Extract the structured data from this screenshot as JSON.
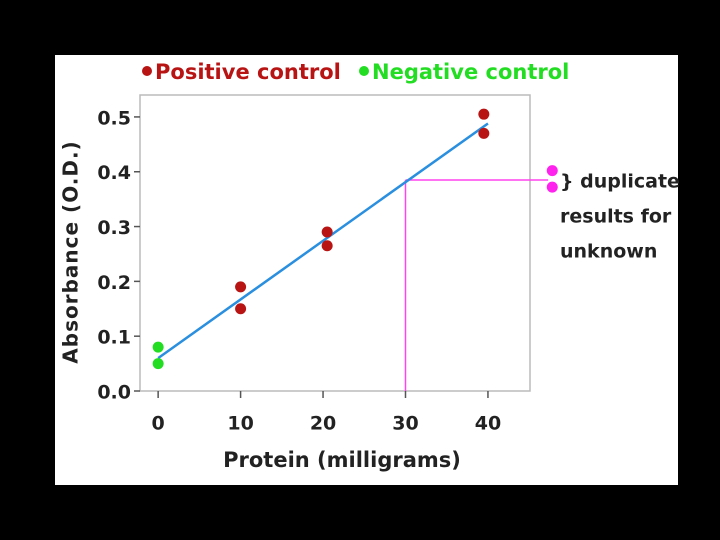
{
  "chart_data": {
    "type": "scatter",
    "x_label": "Protein (milligrams)",
    "y_label": "Absorbance (O.D.)",
    "xlim": [
      -2.2,
      45.1
    ],
    "ylim": [
      0,
      0.54
    ],
    "xticks": [
      0,
      10,
      20,
      30,
      40
    ],
    "yticks": [
      {
        "value": 0,
        "label": "0.0"
      },
      0.1,
      0.2,
      0.3,
      0.4,
      0.5
    ],
    "series": [
      {
        "name": "Positive control",
        "color": "#b81414",
        "x": [
          10,
          10,
          20.5,
          20.5,
          39.5,
          39.5
        ],
        "values": [
          0.19,
          0.15,
          0.29,
          0.265,
          0.505,
          0.47
        ]
      },
      {
        "name": "Negative control",
        "color": "#22dd22",
        "x": [
          0,
          0
        ],
        "values": [
          0.08,
          0.05
        ]
      },
      {
        "color": "#ff22ee",
        "x": [
          47.8,
          47.8
        ],
        "values": [
          0.402,
          0.372
        ]
      }
    ],
    "fit_line": {
      "color": "#2a8fdf",
      "x": [
        0,
        40
      ],
      "values": [
        0.06,
        0.488
      ]
    },
    "reading": {
      "color": "#ff44ee",
      "x": 30,
      "y": 0.385,
      "x_end": 47.3
    },
    "annotation": [
      "} duplicate",
      "results for",
      "unknown"
    ]
  }
}
